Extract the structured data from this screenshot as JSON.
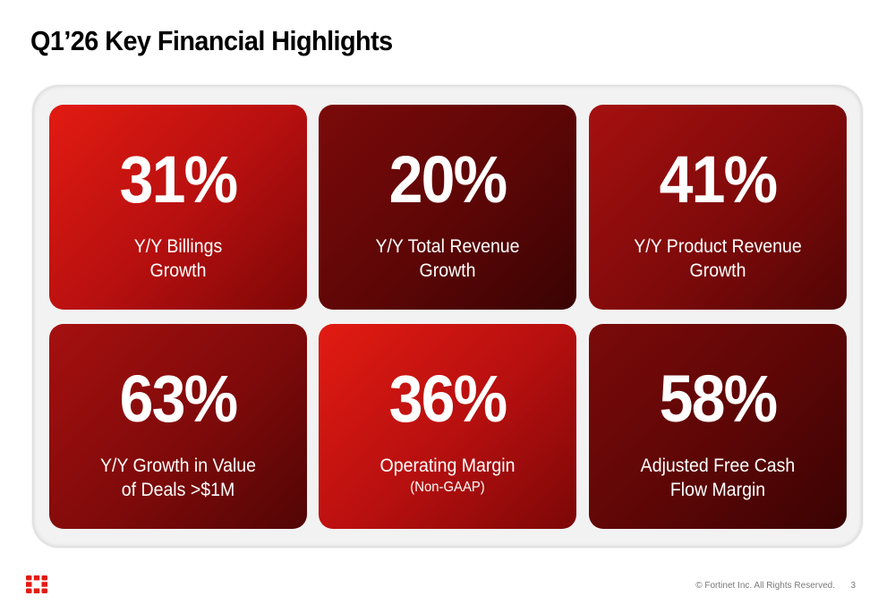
{
  "slide": {
    "title": "Q1’26 Key Financial Highlights",
    "metrics": [
      {
        "value": "31%",
        "label_line1": "Y/Y Billings",
        "label_line2": "Growth",
        "shade": "bright"
      },
      {
        "value": "20%",
        "label_line1": "Y/Y Total Revenue",
        "label_line2": "Growth",
        "shade": "dark"
      },
      {
        "value": "41%",
        "label_line1": "Y/Y Product Revenue",
        "label_line2": "Growth",
        "shade": "mid"
      },
      {
        "value": "63%",
        "label_line1": "Y/Y Growth in Value",
        "label_line2": "of Deals >$1M",
        "shade": "mid"
      },
      {
        "value": "36%",
        "label_line1": "Operating Margin",
        "label_line2": "(Non-GAAP)",
        "shade": "bright"
      },
      {
        "value": "58%",
        "label_line1": "Adjusted Free Cash",
        "label_line2": "Flow Margin",
        "shade": "dark"
      }
    ],
    "footer": {
      "logo_icon": "fortinet-logo-icon",
      "copyright": "© Fortinet Inc. All Rights Reserved.",
      "page_number": "3"
    },
    "colors": {
      "brand_red": "#e21b12",
      "dark_red": "#520505",
      "panel_gray": "#f2f2f2",
      "footer_text": "#7a7a7a"
    }
  }
}
